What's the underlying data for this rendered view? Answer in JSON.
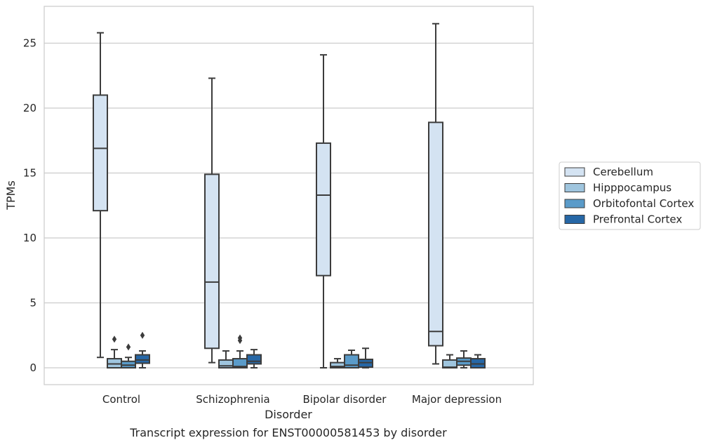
{
  "chart_data": {
    "type": "box",
    "xlabel": "Disorder",
    "ylabel": "TPMs",
    "caption": "Transcript expression for ENST00000581453 by disorder",
    "ylim": [
      -1.3,
      27.5
    ],
    "yticks": [
      0,
      5,
      10,
      15,
      20,
      25
    ],
    "grid": "horizontal",
    "legend_position": "right",
    "categories": [
      "Control",
      "Schizophrenia",
      "Bipolar disorder",
      "Major depression"
    ],
    "series": [
      {
        "name": "Cerebellum",
        "color": "#d4e3f2",
        "boxes": [
          {
            "whisker_low": 0.8,
            "q1": 12.1,
            "median": 16.9,
            "q3": 21.0,
            "whisker_high": 25.8,
            "outliers": []
          },
          {
            "whisker_low": 0.4,
            "q1": 1.5,
            "median": 6.6,
            "q3": 14.9,
            "whisker_high": 22.3,
            "outliers": []
          },
          {
            "whisker_low": 0.0,
            "q1": 7.1,
            "median": 13.3,
            "q3": 17.3,
            "whisker_high": 24.1,
            "outliers": []
          },
          {
            "whisker_low": 0.3,
            "q1": 1.7,
            "median": 2.8,
            "q3": 18.9,
            "whisker_high": 26.5,
            "outliers": []
          }
        ]
      },
      {
        "name": "Hipppocampus",
        "color": "#9fc5de",
        "boxes": [
          {
            "whisker_low": 0.0,
            "q1": 0.0,
            "median": 0.3,
            "q3": 0.7,
            "whisker_high": 1.4,
            "outliers": [
              2.2
            ]
          },
          {
            "whisker_low": 0.0,
            "q1": 0.0,
            "median": 0.15,
            "q3": 0.6,
            "whisker_high": 1.3,
            "outliers": []
          },
          {
            "whisker_low": 0.0,
            "q1": 0.0,
            "median": 0.1,
            "q3": 0.4,
            "whisker_high": 0.7,
            "outliers": []
          },
          {
            "whisker_low": 0.0,
            "q1": 0.0,
            "median": 0.05,
            "q3": 0.6,
            "whisker_high": 1.0,
            "outliers": []
          }
        ]
      },
      {
        "name": "Orbitofontal Cortex",
        "color": "#5a9bc9",
        "boxes": [
          {
            "whisker_low": 0.0,
            "q1": 0.0,
            "median": 0.2,
            "q3": 0.5,
            "whisker_high": 0.8,
            "outliers": [
              1.6
            ]
          },
          {
            "whisker_low": 0.0,
            "q1": 0.0,
            "median": 0.1,
            "q3": 0.7,
            "whisker_high": 1.3,
            "outliers": [
              2.1,
              2.3
            ]
          },
          {
            "whisker_low": 0.0,
            "q1": 0.0,
            "median": 0.2,
            "q3": 1.0,
            "whisker_high": 1.35,
            "outliers": []
          },
          {
            "whisker_low": 0.0,
            "q1": 0.2,
            "median": 0.5,
            "q3": 0.75,
            "whisker_high": 1.3,
            "outliers": []
          }
        ]
      },
      {
        "name": "Prefrontal Cortex",
        "color": "#2667a6",
        "boxes": [
          {
            "whisker_low": 0.0,
            "q1": 0.35,
            "median": 0.6,
            "q3": 1.0,
            "whisker_high": 1.3,
            "outliers": [
              2.5
            ]
          },
          {
            "whisker_low": 0.0,
            "q1": 0.3,
            "median": 0.5,
            "q3": 1.0,
            "whisker_high": 1.4,
            "outliers": []
          },
          {
            "whisker_low": 0.0,
            "q1": 0.05,
            "median": 0.4,
            "q3": 0.65,
            "whisker_high": 1.5,
            "outliers": []
          },
          {
            "whisker_low": 0.0,
            "q1": 0.0,
            "median": 0.3,
            "q3": 0.7,
            "whisker_high": 1.0,
            "outliers": []
          }
        ]
      }
    ],
    "style": {
      "box_edge_color": "#3c3c3c",
      "grid_color": "#cccccc",
      "frame_color": "#cccccc",
      "legend_edge_color": "#cccccc"
    }
  }
}
